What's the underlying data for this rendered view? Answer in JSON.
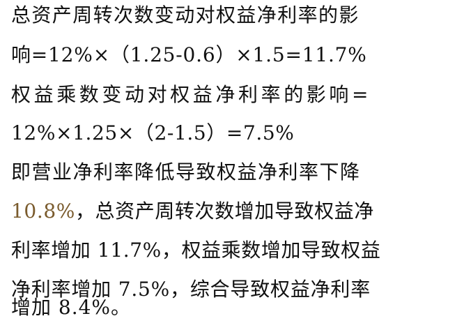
{
  "document": {
    "lines": [
      "总资产周转次数变动对权益净利率的影",
      "响=12%×（1.25-0.6）×1.5=11.7%",
      "权益乘数变动对权益净利率的影响=",
      "12%×1.25×（2-1.5）=7.5%",
      "即营业净利率降低导致权益净利率下降",
      "10.8%，总资产周转次数增加导致权益净",
      "利率增加 11.7%，权益乘数增加导致权益",
      "净利率增加 7.5%，综合导致权益净利率",
      "增加 8.4%。"
    ],
    "line6_first_segment": "10.8%",
    "line6_rest": "，总资产周转次数增加导致权益净"
  }
}
